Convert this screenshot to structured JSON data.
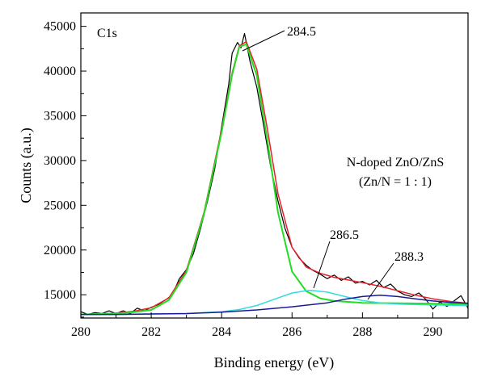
{
  "chart_data": {
    "type": "line",
    "xlabel": "Binding energy (eV)",
    "ylabel": "Counts (a.u.)",
    "xlim": [
      280,
      291
    ],
    "ylim": [
      12400,
      46500
    ],
    "xticks": [
      280,
      282,
      284,
      286,
      288,
      290
    ],
    "yticks": [
      15000,
      20000,
      25000,
      30000,
      35000,
      40000,
      45000
    ],
    "xtick_labels": [
      "280",
      "282",
      "284",
      "286",
      "288",
      "290"
    ],
    "ytick_labels": [
      "15000",
      "20000",
      "25000",
      "30000",
      "35000",
      "40000",
      "45000"
    ],
    "grid": false,
    "annotations": {
      "panel_label": "C1s",
      "sample_line1": "N-doped ZnO/ZnS",
      "sample_line2": "(Zn/N = 1 : 1)",
      "peak1": "284.5",
      "peak2": "286.5",
      "peak3": "288.3"
    },
    "series": [
      {
        "color": "#000000",
        "width": 1.2,
        "points": [
          [
            280.0,
            13100
          ],
          [
            280.2,
            12800
          ],
          [
            280.4,
            13000
          ],
          [
            280.6,
            12900
          ],
          [
            280.8,
            13200
          ],
          [
            281.0,
            12900
          ],
          [
            281.2,
            13200
          ],
          [
            281.4,
            12900
          ],
          [
            281.6,
            13500
          ],
          [
            281.8,
            13200
          ],
          [
            282.0,
            13600
          ],
          [
            282.2,
            13900
          ],
          [
            282.4,
            14400
          ],
          [
            282.6,
            15000
          ],
          [
            282.8,
            16800
          ],
          [
            283.0,
            17800
          ],
          [
            283.2,
            19600
          ],
          [
            283.4,
            22400
          ],
          [
            283.6,
            25500
          ],
          [
            283.8,
            29000
          ],
          [
            284.0,
            33800
          ],
          [
            284.2,
            38500
          ],
          [
            284.3,
            42000
          ],
          [
            284.45,
            43200
          ],
          [
            284.55,
            42600
          ],
          [
            284.65,
            44200
          ],
          [
            284.8,
            41200
          ],
          [
            285.0,
            38200
          ],
          [
            285.2,
            33800
          ],
          [
            285.4,
            29200
          ],
          [
            285.6,
            25500
          ],
          [
            285.8,
            22400
          ],
          [
            286.0,
            20300
          ],
          [
            286.2,
            19100
          ],
          [
            286.4,
            18300
          ],
          [
            286.6,
            17700
          ],
          [
            286.8,
            17300
          ],
          [
            287.0,
            16800
          ],
          [
            287.2,
            17200
          ],
          [
            287.4,
            16600
          ],
          [
            287.6,
            17000
          ],
          [
            287.8,
            16300
          ],
          [
            288.0,
            16500
          ],
          [
            288.2,
            16100
          ],
          [
            288.4,
            16600
          ],
          [
            288.6,
            15800
          ],
          [
            288.8,
            16200
          ],
          [
            289.0,
            15400
          ],
          [
            289.2,
            15000
          ],
          [
            289.4,
            14800
          ],
          [
            289.6,
            15200
          ],
          [
            289.8,
            14500
          ],
          [
            290.0,
            13400
          ],
          [
            290.2,
            14200
          ],
          [
            290.4,
            13700
          ],
          [
            290.6,
            14300
          ],
          [
            290.8,
            14900
          ],
          [
            291.0,
            13500
          ]
        ]
      },
      {
        "color": "#e8202a",
        "width": 1.5,
        "points": [
          [
            280.0,
            12800
          ],
          [
            280.5,
            12850
          ],
          [
            281.0,
            12950
          ],
          [
            281.5,
            13150
          ],
          [
            282.0,
            13550
          ],
          [
            282.5,
            14650
          ],
          [
            283.0,
            17700
          ],
          [
            283.5,
            24200
          ],
          [
            284.0,
            33500
          ],
          [
            284.3,
            39800
          ],
          [
            284.5,
            42800
          ],
          [
            284.7,
            43300
          ],
          [
            285.0,
            40200
          ],
          [
            285.3,
            33500
          ],
          [
            285.6,
            26300
          ],
          [
            286.0,
            20300
          ],
          [
            286.4,
            18100
          ],
          [
            286.8,
            17400
          ],
          [
            287.2,
            16950
          ],
          [
            287.6,
            16650
          ],
          [
            288.0,
            16350
          ],
          [
            288.5,
            15950
          ],
          [
            289.0,
            15450
          ],
          [
            289.5,
            14950
          ],
          [
            290.0,
            14550
          ],
          [
            290.5,
            14250
          ],
          [
            291.0,
            14050
          ]
        ]
      },
      {
        "color": "#22dd22",
        "width": 2.0,
        "points": [
          [
            280.0,
            12800
          ],
          [
            280.5,
            12850
          ],
          [
            281.0,
            12900
          ],
          [
            281.5,
            13050
          ],
          [
            282.0,
            13300
          ],
          [
            282.5,
            14400
          ],
          [
            283.0,
            17500
          ],
          [
            283.5,
            24000
          ],
          [
            284.0,
            33200
          ],
          [
            284.3,
            39600
          ],
          [
            284.5,
            42700
          ],
          [
            284.7,
            43000
          ],
          [
            285.0,
            39500
          ],
          [
            285.3,
            32200
          ],
          [
            285.6,
            24200
          ],
          [
            286.0,
            17600
          ],
          [
            286.4,
            15400
          ],
          [
            286.8,
            14600
          ],
          [
            287.2,
            14300
          ],
          [
            287.6,
            14200
          ],
          [
            288.0,
            14100
          ],
          [
            289.0,
            14050
          ],
          [
            290.0,
            14000
          ],
          [
            291.0,
            13950
          ]
        ]
      },
      {
        "color": "#33dddd",
        "width": 1.5,
        "points": [
          [
            280.0,
            12800
          ],
          [
            281.0,
            12800
          ],
          [
            282.0,
            12850
          ],
          [
            283.0,
            12900
          ],
          [
            284.0,
            13100
          ],
          [
            284.5,
            13350
          ],
          [
            285.0,
            13800
          ],
          [
            285.5,
            14500
          ],
          [
            286.0,
            15200
          ],
          [
            286.5,
            15500
          ],
          [
            287.0,
            15300
          ],
          [
            287.5,
            14800
          ],
          [
            288.0,
            14350
          ],
          [
            288.5,
            14100
          ],
          [
            289.0,
            13950
          ],
          [
            290.0,
            13850
          ],
          [
            291.0,
            13800
          ]
        ]
      },
      {
        "color": "#1a1a99",
        "width": 1.5,
        "points": [
          [
            280.0,
            12800
          ],
          [
            281.0,
            12800
          ],
          [
            282.0,
            12850
          ],
          [
            283.0,
            12900
          ],
          [
            284.0,
            13050
          ],
          [
            285.0,
            13300
          ],
          [
            286.0,
            13650
          ],
          [
            287.0,
            14100
          ],
          [
            287.5,
            14500
          ],
          [
            288.0,
            14800
          ],
          [
            288.5,
            14950
          ],
          [
            289.0,
            14800
          ],
          [
            289.5,
            14550
          ],
          [
            290.0,
            14300
          ],
          [
            290.5,
            14150
          ],
          [
            291.0,
            14050
          ]
        ]
      }
    ]
  }
}
